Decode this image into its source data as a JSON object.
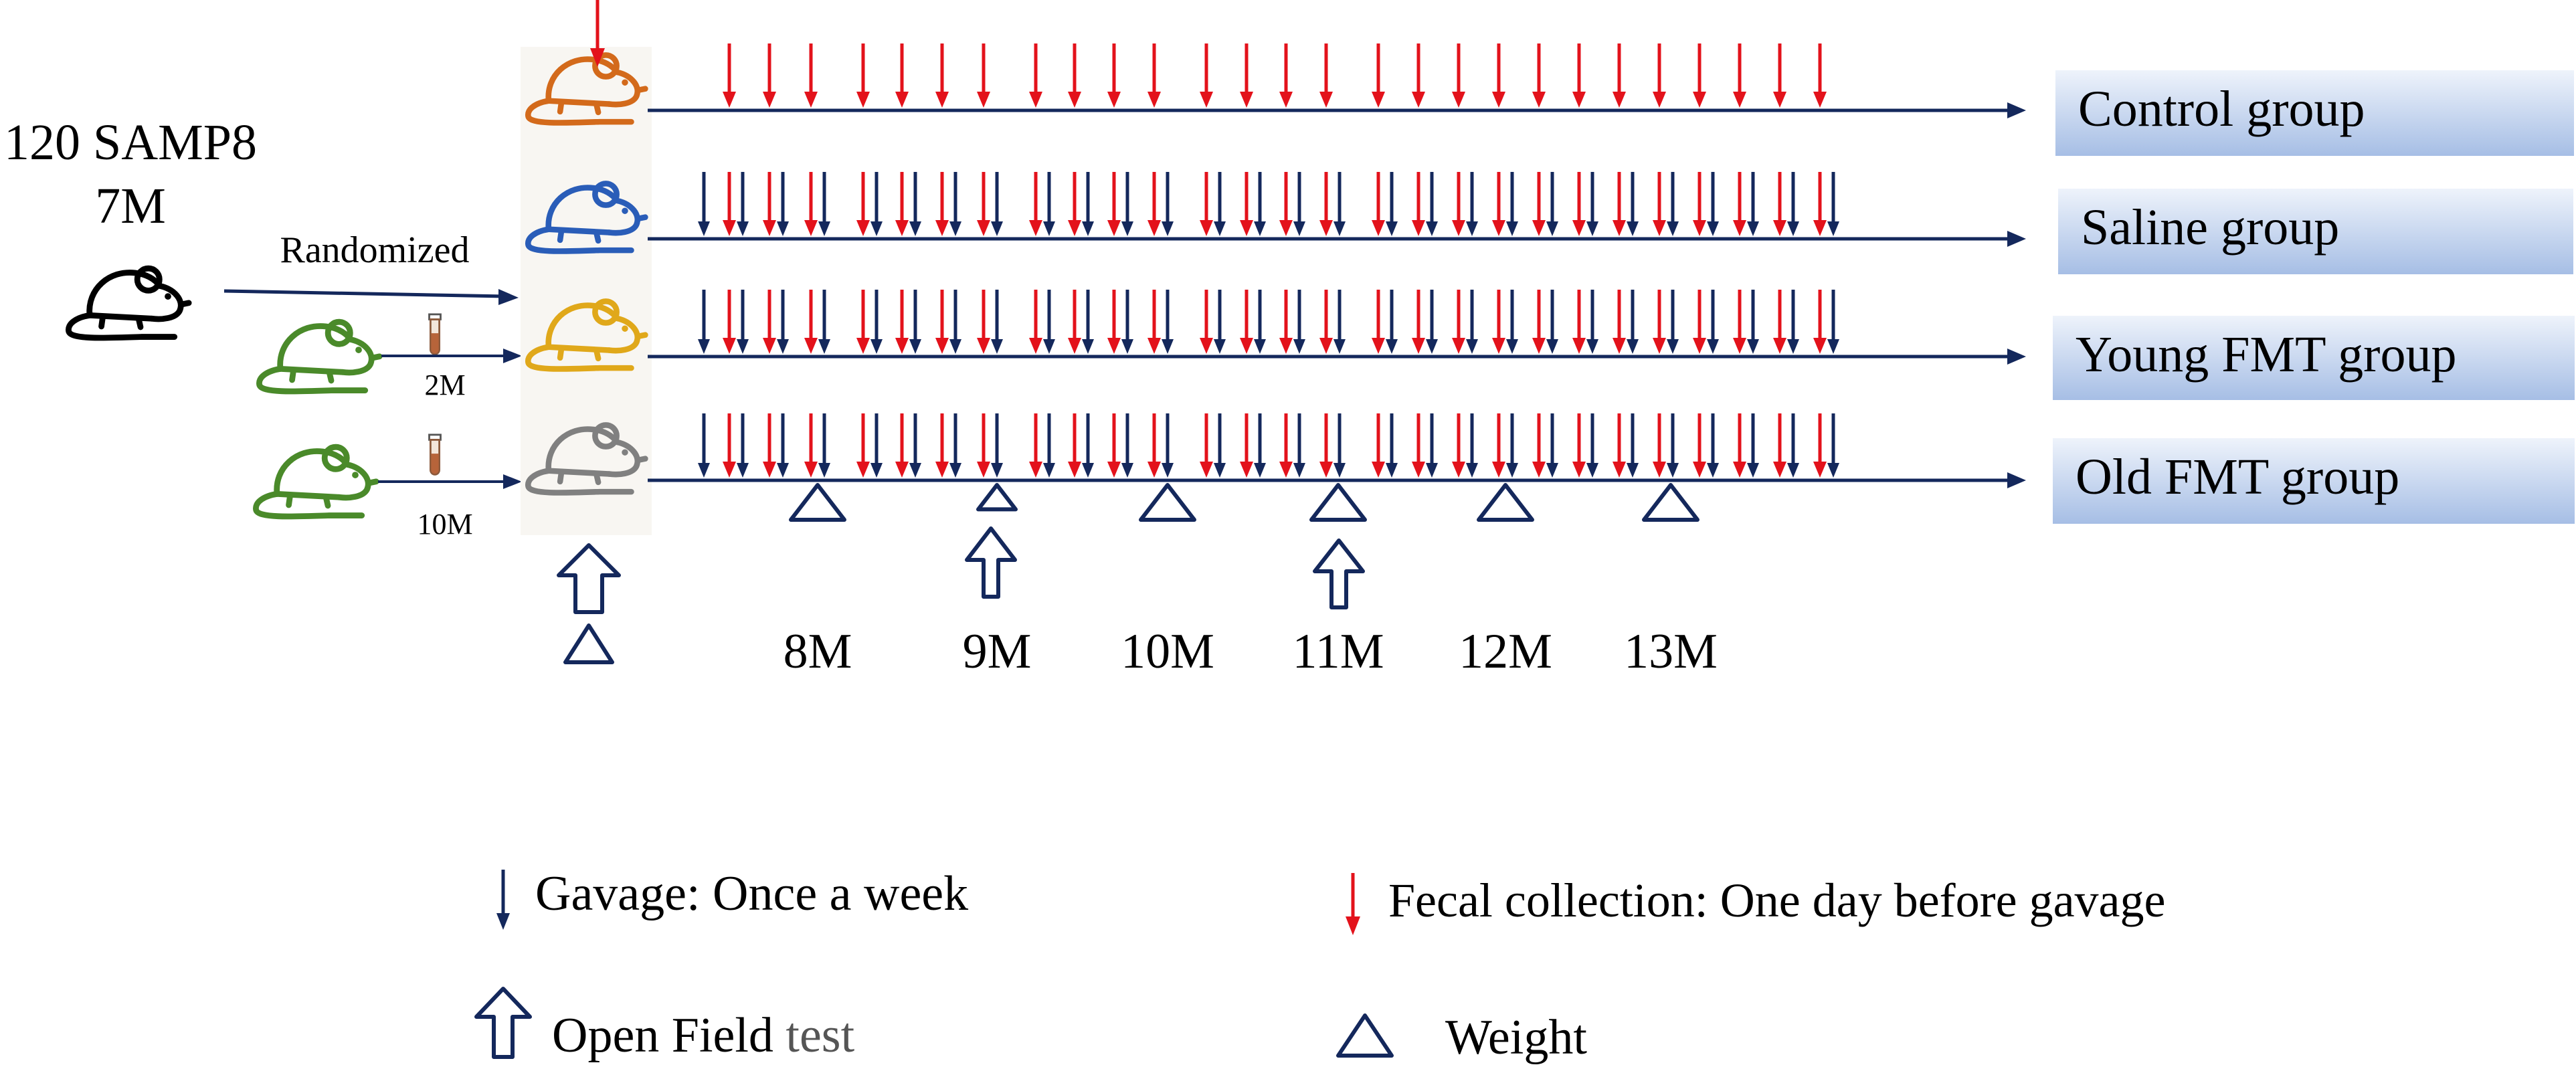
{
  "source": {
    "line1": "120 SAMP8",
    "line2": "7M",
    "randomized": "Randomized"
  },
  "donors": [
    {
      "age": "2M"
    },
    {
      "age": "10M"
    }
  ],
  "groups": [
    {
      "label": "Control group",
      "mouse_color": "#d36a1b",
      "gavage": false
    },
    {
      "label": "Saline group",
      "mouse_color": "#2a5db8",
      "gavage": true
    },
    {
      "label": "Young FMT group",
      "mouse_color": "#e0a81a",
      "gavage": true
    },
    {
      "label": "Old FMT group",
      "mouse_color": "#808080",
      "gavage": true
    }
  ],
  "donor_mouse_color": "#4a8a2a",
  "timeline": {
    "months": [
      "8M",
      "9M",
      "10M",
      "11M",
      "12M",
      "13M"
    ],
    "fecal_collection_count": 27
  },
  "legend": {
    "gavage": "Gavage:  Once a week",
    "fecal": "Fecal collection: One day before gavage",
    "open_field_a": "Open Field",
    "open_field_b": " test",
    "weight": "Weight"
  },
  "colors": {
    "red": "#e3121b",
    "navy": "#14285c",
    "label_bg_top": "#e8eef9",
    "label_bg_bottom": "#a9c1e6"
  }
}
